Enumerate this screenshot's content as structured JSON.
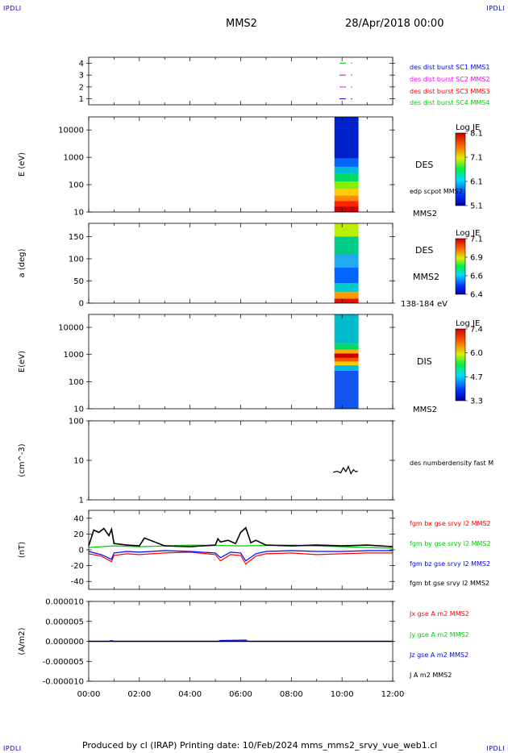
{
  "header": {
    "corner_left": "IPDLI",
    "corner_right": "IPDLI",
    "spacecraft": "MMS2",
    "date_time": "28/Apr/2018 00:00"
  },
  "footer": {
    "text": "Produced by cl (IRAP)   Printing date: 10/Feb/2024   mms_mms2_srvy_vue_web1.cl",
    "corner_left": "IPDLI",
    "corner_right": "IPDLI"
  },
  "time_axis": {
    "range_hours": [
      0,
      12
    ],
    "tick_labels": [
      "00:00",
      "02:00",
      "04:00",
      "06:00",
      "08:00",
      "10:00",
      "12:00"
    ]
  },
  "colors": {
    "blue": "#0000ff",
    "magenta": "#ff00ff",
    "red": "#ff0000",
    "green": "#00cc00",
    "black": "#000000"
  },
  "chart_data": [
    {
      "type": "line",
      "panel": "burst",
      "ylabel": "",
      "ylim": [
        0.5,
        4.5
      ],
      "ytick_labels": [
        "1",
        "2",
        "3",
        "4"
      ],
      "labels": [
        {
          "text": "des dist burst SC1 MMS1",
          "color": "#0000ff"
        },
        {
          "text": "des dist burst SC2 MMS2",
          "color": "#ff00ff"
        },
        {
          "text": "des dist burst SC3 MMS3",
          "color": "#ff0000"
        },
        {
          "text": "des dist burst SC4 MMS4",
          "color": "#00cc00"
        }
      ],
      "series": [
        {
          "level": 4,
          "color": "#00cc00",
          "x": [
            9.9,
            10.35
          ]
        },
        {
          "level": 3,
          "color": "#ff0000",
          "x": [
            9.9,
            10.35
          ]
        },
        {
          "level": 2,
          "color": "#ff00ff",
          "x": [
            9.9,
            10.35
          ]
        },
        {
          "level": 1,
          "color": "#0000ff",
          "x": [
            9.9,
            10.35
          ]
        }
      ]
    },
    {
      "type": "heatmap",
      "panel": "des_energy",
      "ylabel": "E (eV)",
      "yscale": "log",
      "ylim": [
        10,
        30000
      ],
      "ytick_labels": [
        "10",
        "100",
        "1000",
        "10000"
      ],
      "right_labels": [
        "DES",
        "edp scpot MMS2",
        "MMS2"
      ],
      "colorbar": {
        "title": "Log JE",
        "ticks": [
          "8.1",
          "7.1",
          "6.1",
          "5.1"
        ]
      },
      "x_range": [
        9.7,
        10.65
      ],
      "bands": [
        {
          "y": [
            10,
            16
          ],
          "color": "#cc0000"
        },
        {
          "y": [
            16,
            25
          ],
          "color": "#ff2200"
        },
        {
          "y": [
            25,
            40
          ],
          "color": "#ff8800"
        },
        {
          "y": [
            40,
            70
          ],
          "color": "#ffcc00"
        },
        {
          "y": [
            70,
            130
          ],
          "color": "#88ee00"
        },
        {
          "y": [
            130,
            250
          ],
          "color": "#00dd66"
        },
        {
          "y": [
            250,
            450
          ],
          "color": "#00bbdd"
        },
        {
          "y": [
            450,
            900
          ],
          "color": "#0066ff"
        },
        {
          "y": [
            900,
            30000
          ],
          "color": "#0022cc"
        }
      ]
    },
    {
      "type": "heatmap",
      "panel": "des_pitch",
      "ylabel": "a (deg)",
      "ylim": [
        0,
        180
      ],
      "ytick_labels": [
        "0",
        "50",
        "100",
        "150"
      ],
      "right_labels": [
        "DES",
        "MMS2",
        "138-184 eV"
      ],
      "colorbar": {
        "title": "Log JE",
        "ticks": [
          "7.1",
          "6.9",
          "6.6",
          "6.4"
        ]
      },
      "x_range": [
        9.7,
        10.65
      ],
      "bands": [
        {
          "y": [
            0,
            10
          ],
          "color": "#dd1100"
        },
        {
          "y": [
            10,
            25
          ],
          "color": "#ff9900"
        },
        {
          "y": [
            25,
            45
          ],
          "color": "#00cccc"
        },
        {
          "y": [
            45,
            80
          ],
          "color": "#0066ff"
        },
        {
          "y": [
            80,
            110
          ],
          "color": "#22aaee"
        },
        {
          "y": [
            110,
            150
          ],
          "color": "#00cc88"
        },
        {
          "y": [
            150,
            180
          ],
          "color": "#bbee00"
        }
      ]
    },
    {
      "type": "heatmap",
      "panel": "dis_energy",
      "ylabel": "E(eV)",
      "yscale": "log",
      "ylim": [
        10,
        30000
      ],
      "ytick_labels": [
        "10",
        "100",
        "1000",
        "10000"
      ],
      "right_labels": [
        "DIS",
        "MMS2"
      ],
      "colorbar": {
        "title": "Log JE",
        "ticks": [
          "7.4",
          "6.0",
          "4.7",
          "3.3"
        ]
      },
      "x_range": [
        9.7,
        10.65
      ],
      "bands": [
        {
          "y": [
            10,
            250
          ],
          "color": "#1155ee"
        },
        {
          "y": [
            250,
            400
          ],
          "color": "#00bbdd"
        },
        {
          "y": [
            400,
            550
          ],
          "color": "#ffcc00"
        },
        {
          "y": [
            550,
            750
          ],
          "color": "#ff5500"
        },
        {
          "y": [
            750,
            1100
          ],
          "color": "#cc0000"
        },
        {
          "y": [
            1100,
            1500
          ],
          "color": "#ffaa00"
        },
        {
          "y": [
            1500,
            2500
          ],
          "color": "#00dd66"
        },
        {
          "y": [
            2500,
            30000
          ],
          "color": "#00bbcc"
        }
      ]
    },
    {
      "type": "line",
      "panel": "density",
      "ylabel": "(cm^-3)",
      "yscale": "log",
      "ylim": [
        1,
        100
      ],
      "ytick_labels": [
        "1",
        "10",
        "100"
      ],
      "series": [
        {
          "name": "des numberdensity fast M",
          "color": "#000000",
          "x": [
            9.65,
            9.8,
            9.95,
            10.05,
            10.15,
            10.25,
            10.35,
            10.45,
            10.55,
            10.62
          ],
          "y": [
            5.0,
            5.3,
            4.8,
            6.5,
            5.2,
            7.0,
            4.6,
            5.8,
            5.1,
            5.4
          ]
        }
      ]
    },
    {
      "type": "line",
      "panel": "fgm",
      "ylabel": "(nT)",
      "ylim": [
        -50,
        50
      ],
      "ytick_labels": [
        "-40",
        "-20",
        "0",
        "20",
        "40"
      ],
      "series": [
        {
          "name": "fgm bx gse srvy l2 MMS2",
          "color": "#ff0000",
          "x": [
            0,
            0.5,
            0.9,
            1.0,
            1.5,
            2.0,
            3.0,
            4.0,
            5.0,
            5.2,
            5.6,
            6.0,
            6.2,
            6.6,
            7.0,
            8.0,
            9.0,
            10.0,
            11.0,
            12.0
          ],
          "y": [
            -5,
            -8,
            -15,
            -7,
            -5,
            -6,
            -4,
            -3,
            -6,
            -14,
            -6,
            -7,
            -18,
            -8,
            -5,
            -4,
            -6,
            -5,
            -4,
            -4
          ]
        },
        {
          "name": "fgm by gse srvy l2 MMS2",
          "color": "#00cc00",
          "x": [
            0,
            1,
            2,
            4,
            6,
            8,
            10,
            12
          ],
          "y": [
            3,
            5,
            4,
            6,
            5,
            6,
            4,
            2
          ]
        },
        {
          "name": "fgm bz gse srvy l2 MMS2",
          "color": "#0000ff",
          "x": [
            0,
            0.5,
            0.9,
            1.0,
            1.5,
            2.0,
            3.0,
            4.0,
            5.0,
            5.2,
            5.6,
            6.0,
            6.2,
            6.6,
            7.0,
            8.0,
            9.0,
            10.0,
            11.0,
            12.0
          ],
          "y": [
            -2,
            -6,
            -12,
            -4,
            -2,
            -3,
            -1,
            -2,
            -4,
            -10,
            -3,
            -4,
            -14,
            -5,
            -2,
            -1,
            -2,
            -2,
            -1,
            -1
          ]
        },
        {
          "name": "fgm bt gse srvy l2 MMS2",
          "color": "#000000",
          "x": [
            0,
            0.2,
            0.4,
            0.6,
            0.8,
            0.9,
            1.0,
            1.5,
            2.0,
            2.2,
            3.0,
            4.0,
            5.0,
            5.1,
            5.2,
            5.5,
            5.8,
            6.0,
            6.2,
            6.4,
            6.6,
            7.0,
            8.0,
            9.0,
            10.0,
            11.0,
            12.0
          ],
          "y": [
            5,
            25,
            22,
            27,
            18,
            26,
            8,
            6,
            5,
            15,
            5,
            4,
            6,
            14,
            10,
            12,
            8,
            22,
            28,
            9,
            12,
            6,
            5,
            6,
            5,
            6,
            4
          ]
        }
      ]
    },
    {
      "type": "line",
      "panel": "current",
      "ylabel": "(A/m2)",
      "ylim": [
        -1e-05,
        1e-05
      ],
      "ytick_labels": [
        "-0.000010",
        "-0.000005",
        "0.000000",
        "0.000005",
        "0.000010"
      ],
      "series": [
        {
          "name": "Jx gse A m2 MMS2",
          "color": "#ff0000",
          "x": [
            0,
            12
          ],
          "y": [
            0,
            0
          ]
        },
        {
          "name": "Jy gse A m2 MMS2",
          "color": "#00cc00",
          "x": [
            0,
            12
          ],
          "y": [
            0,
            0
          ]
        },
        {
          "name": "Jz gse A m2 MMS2",
          "color": "#0000ff",
          "x": [
            0,
            0.8,
            0.9,
            1.0,
            5.1,
            5.2,
            6.2,
            6.3,
            12
          ],
          "y": [
            0,
            0,
            2e-07,
            0,
            0,
            2e-07,
            3e-07,
            0,
            0
          ]
        },
        {
          "name": "J A m2 MMS2",
          "color": "#000000",
          "x": [
            0,
            12
          ],
          "y": [
            0,
            0
          ]
        }
      ]
    }
  ]
}
